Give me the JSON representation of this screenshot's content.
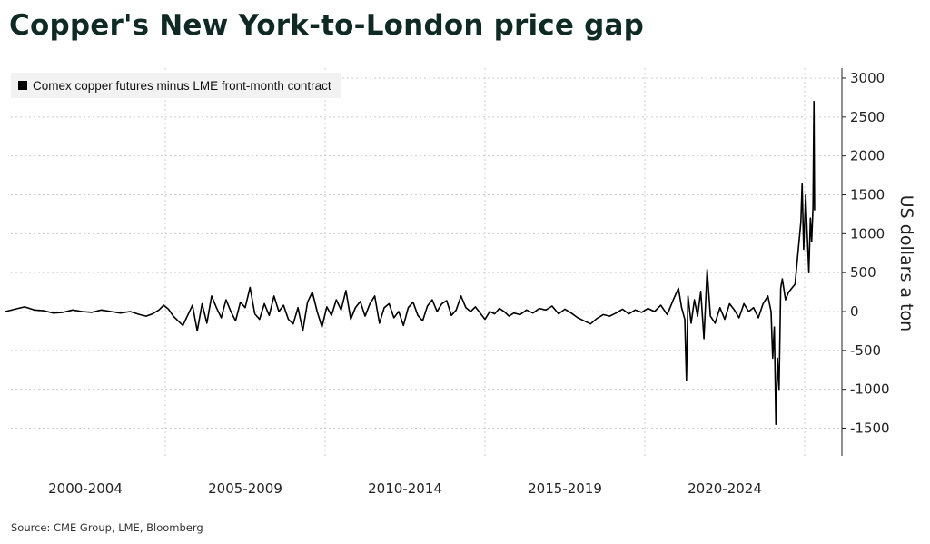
{
  "title": "Copper's New York-to-London price gap",
  "source": "Source: CME Group, LME, Bloomberg",
  "chart_data": {
    "type": "line",
    "title": "Copper's New York-to-London price gap",
    "ylabel": "US dollars a ton",
    "xlabel": "",
    "x_range": [
      2000.0,
      2025.33
    ],
    "ylim": [
      -1700,
      3100
    ],
    "y_ticks": [
      3000,
      2500,
      2000,
      1500,
      1000,
      500,
      0,
      -500,
      -1000,
      -1500
    ],
    "x_tick_labels": [
      {
        "label": "2000-2004",
        "center": 2002.5
      },
      {
        "label": "2005-2009",
        "center": 2007.5
      },
      {
        "label": "2010-2014",
        "center": 2012.5
      },
      {
        "label": "2015-2019",
        "center": 2017.5
      },
      {
        "label": "2020-2024",
        "center": 2022.5
      }
    ],
    "x_gridlines": [
      2005,
      2010,
      2015,
      2020,
      2025
    ],
    "grid": true,
    "legend_position": "top-left",
    "colors": {
      "line": "#000000",
      "grid": "#cccccc",
      "title": "#0f2a24"
    },
    "series": [
      {
        "name": "Comex copper futures minus LME front-month contract",
        "points": [
          [
            2000.0,
            0
          ],
          [
            2000.3,
            30
          ],
          [
            2000.6,
            60
          ],
          [
            2000.9,
            20
          ],
          [
            2001.2,
            10
          ],
          [
            2001.5,
            -20
          ],
          [
            2001.8,
            -10
          ],
          [
            2002.1,
            20
          ],
          [
            2002.4,
            0
          ],
          [
            2002.7,
            -10
          ],
          [
            2003.0,
            20
          ],
          [
            2003.3,
            0
          ],
          [
            2003.6,
            -20
          ],
          [
            2003.9,
            0
          ],
          [
            2004.2,
            -40
          ],
          [
            2004.4,
            -60
          ],
          [
            2004.6,
            -30
          ],
          [
            2004.8,
            20
          ],
          [
            2004.95,
            80
          ],
          [
            2005.1,
            30
          ],
          [
            2005.25,
            -60
          ],
          [
            2005.4,
            -120
          ],
          [
            2005.55,
            -180
          ],
          [
            2005.7,
            -50
          ],
          [
            2005.85,
            80
          ],
          [
            2006.0,
            -250
          ],
          [
            2006.15,
            100
          ],
          [
            2006.3,
            -150
          ],
          [
            2006.45,
            200
          ],
          [
            2006.6,
            50
          ],
          [
            2006.75,
            -80
          ],
          [
            2006.9,
            150
          ],
          [
            2007.05,
            0
          ],
          [
            2007.2,
            -120
          ],
          [
            2007.35,
            120
          ],
          [
            2007.5,
            50
          ],
          [
            2007.65,
            310
          ],
          [
            2007.8,
            -30
          ],
          [
            2007.95,
            -100
          ],
          [
            2008.1,
            100
          ],
          [
            2008.25,
            -50
          ],
          [
            2008.4,
            200
          ],
          [
            2008.55,
            0
          ],
          [
            2008.7,
            80
          ],
          [
            2008.85,
            -100
          ],
          [
            2009.0,
            -160
          ],
          [
            2009.15,
            50
          ],
          [
            2009.3,
            -250
          ],
          [
            2009.45,
            120
          ],
          [
            2009.6,
            250
          ],
          [
            2009.75,
            0
          ],
          [
            2009.9,
            -200
          ],
          [
            2010.05,
            60
          ],
          [
            2010.2,
            -50
          ],
          [
            2010.35,
            150
          ],
          [
            2010.5,
            20
          ],
          [
            2010.65,
            270
          ],
          [
            2010.8,
            -100
          ],
          [
            2010.95,
            50
          ],
          [
            2011.1,
            130
          ],
          [
            2011.25,
            -60
          ],
          [
            2011.4,
            100
          ],
          [
            2011.55,
            200
          ],
          [
            2011.7,
            -150
          ],
          [
            2011.85,
            50
          ],
          [
            2012.0,
            100
          ],
          [
            2012.15,
            -80
          ],
          [
            2012.3,
            0
          ],
          [
            2012.45,
            -180
          ],
          [
            2012.6,
            50
          ],
          [
            2012.75,
            120
          ],
          [
            2012.9,
            -50
          ],
          [
            2013.05,
            -120
          ],
          [
            2013.2,
            70
          ],
          [
            2013.35,
            150
          ],
          [
            2013.5,
            0
          ],
          [
            2013.65,
            100
          ],
          [
            2013.8,
            140
          ],
          [
            2013.95,
            -50
          ],
          [
            2014.1,
            20
          ],
          [
            2014.25,
            200
          ],
          [
            2014.4,
            50
          ],
          [
            2014.55,
            0
          ],
          [
            2014.7,
            60
          ],
          [
            2014.85,
            -20
          ],
          [
            2015.0,
            -100
          ],
          [
            2015.15,
            0
          ],
          [
            2015.3,
            -30
          ],
          [
            2015.45,
            40
          ],
          [
            2015.6,
            0
          ],
          [
            2015.75,
            -60
          ],
          [
            2015.9,
            -20
          ],
          [
            2016.1,
            -40
          ],
          [
            2016.3,
            20
          ],
          [
            2016.5,
            -20
          ],
          [
            2016.7,
            40
          ],
          [
            2016.9,
            20
          ],
          [
            2017.1,
            70
          ],
          [
            2017.3,
            -30
          ],
          [
            2017.5,
            30
          ],
          [
            2017.7,
            -20
          ],
          [
            2017.9,
            -80
          ],
          [
            2018.1,
            -120
          ],
          [
            2018.3,
            -160
          ],
          [
            2018.5,
            -90
          ],
          [
            2018.7,
            -40
          ],
          [
            2018.9,
            -60
          ],
          [
            2019.1,
            -20
          ],
          [
            2019.3,
            30
          ],
          [
            2019.5,
            -30
          ],
          [
            2019.7,
            20
          ],
          [
            2019.9,
            -10
          ],
          [
            2020.1,
            40
          ],
          [
            2020.3,
            0
          ],
          [
            2020.5,
            80
          ],
          [
            2020.7,
            -40
          ],
          [
            2020.9,
            160
          ],
          [
            2021.05,
            300
          ],
          [
            2021.15,
            50
          ],
          [
            2021.25,
            -100
          ],
          [
            2021.3,
            -880
          ],
          [
            2021.35,
            200
          ],
          [
            2021.45,
            -150
          ],
          [
            2021.55,
            150
          ],
          [
            2021.65,
            -60
          ],
          [
            2021.75,
            260
          ],
          [
            2021.85,
            -350
          ],
          [
            2021.9,
            100
          ],
          [
            2021.95,
            540
          ],
          [
            2022.05,
            -60
          ],
          [
            2022.2,
            -150
          ],
          [
            2022.35,
            50
          ],
          [
            2022.5,
            -100
          ],
          [
            2022.65,
            100
          ],
          [
            2022.8,
            20
          ],
          [
            2022.95,
            -80
          ],
          [
            2023.1,
            100
          ],
          [
            2023.25,
            0
          ],
          [
            2023.4,
            50
          ],
          [
            2023.55,
            -80
          ],
          [
            2023.7,
            100
          ],
          [
            2023.85,
            200
          ],
          [
            2023.95,
            0
          ],
          [
            2024.0,
            -600
          ],
          [
            2024.05,
            -200
          ],
          [
            2024.1,
            -1450
          ],
          [
            2024.15,
            -600
          ],
          [
            2024.2,
            -1000
          ],
          [
            2024.25,
            300
          ],
          [
            2024.3,
            420
          ],
          [
            2024.4,
            150
          ],
          [
            2024.5,
            250
          ],
          [
            2024.6,
            300
          ],
          [
            2024.7,
            350
          ],
          [
            2024.8,
            800
          ],
          [
            2024.88,
            1150
          ],
          [
            2024.92,
            1640
          ],
          [
            2024.97,
            800
          ],
          [
            2025.03,
            1500
          ],
          [
            2025.08,
            1000
          ],
          [
            2025.13,
            500
          ],
          [
            2025.18,
            1200
          ],
          [
            2025.22,
            900
          ],
          [
            2025.26,
            1350
          ],
          [
            2025.29,
            2700
          ],
          [
            2025.31,
            1300
          ]
        ]
      }
    ]
  }
}
